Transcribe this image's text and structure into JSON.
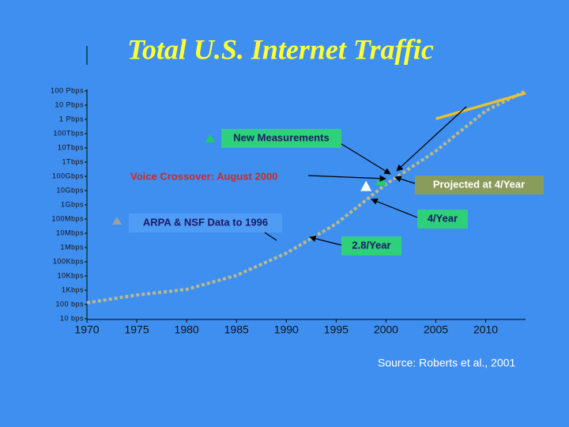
{
  "chart_data": {
    "type": "line",
    "title": "Total U.S. Internet Traffic",
    "source": "Source: Roberts et al., 2001",
    "yscale": "log",
    "xlim": [
      1970,
      2014
    ],
    "xticks": [
      1970,
      1975,
      1980,
      1985,
      1990,
      1995,
      2000,
      2005,
      2010
    ],
    "ylim": [
      10,
      100000000000000000
    ],
    "yticks": [
      {
        "value": 10,
        "label": "10 bps"
      },
      {
        "value": 100,
        "label": "100 bps"
      },
      {
        "value": 1000,
        "label": "1Kbps"
      },
      {
        "value": 10000,
        "label": "10Kbps"
      },
      {
        "value": 100000,
        "label": "100Kbps"
      },
      {
        "value": 1000000,
        "label": "1Mbps"
      },
      {
        "value": 10000000,
        "label": "10Mbps"
      },
      {
        "value": 100000000,
        "label": "100Mbps"
      },
      {
        "value": 1000000000,
        "label": "1Gbps"
      },
      {
        "value": 10000000000,
        "label": "10Gbps"
      },
      {
        "value": 100000000000,
        "label": "100Gbps"
      },
      {
        "value": 1000000000000,
        "label": "1Tbps"
      },
      {
        "value": 10000000000000,
        "label": "10Tbps"
      },
      {
        "value": 100000000000000,
        "label": "100Tbps"
      },
      {
        "value": 1000000000000000,
        "label": "1 Pbps"
      },
      {
        "value": 10000000000000000,
        "label": "10 Pbps"
      },
      {
        "value": 100000000000000000,
        "label": "100 Pbps"
      }
    ],
    "series": [
      {
        "style": "dashed",
        "color": "#b9b98a",
        "x": [
          1970,
          1975,
          1980,
          1985,
          1990,
          1995,
          2000,
          2005,
          2010,
          2014
        ],
        "values": [
          130,
          460,
          1150,
          11000,
          400000,
          46000000,
          28000000000,
          6000000000000,
          4000000000000000,
          100000000000000000
        ]
      },
      {
        "style": "solid",
        "color": "#e8c030",
        "x": [
          2005,
          2014
        ],
        "values": [
          1100000000000000,
          70000000000000000
        ]
      },
      {
        "style": "markers",
        "color": "#ffffff",
        "x": [
          1998
        ],
        "values": [
          20000000000
        ]
      },
      {
        "style": "markers",
        "color": "#22cc66",
        "x": [
          1999.5
        ],
        "values": [
          50000000000
        ]
      }
    ],
    "annotations": [
      "New Measurements",
      "Voice Crossover: August 2000",
      "Projected at 4/Year",
      "4/Year",
      "ARPA & NSF Data to 1996",
      "2.8/Year"
    ]
  }
}
